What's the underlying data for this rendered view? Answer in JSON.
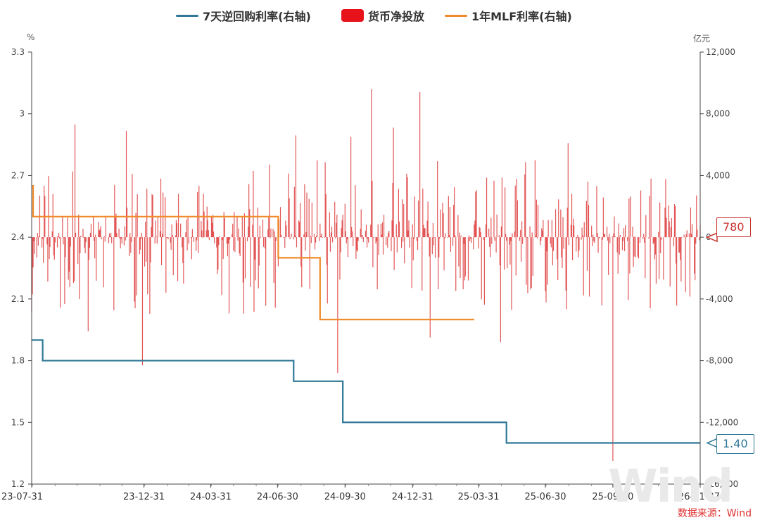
{
  "legend": {
    "rr_label": "7天逆回购利率(右轴)",
    "net_label": "货币净投放",
    "mlf_label": "1年MLF利率(右轴)"
  },
  "units": {
    "left": "%",
    "right": "亿元"
  },
  "callouts": {
    "net_latest": "780",
    "rr_latest": "1.40"
  },
  "source": "数据来源：Wind",
  "watermark": "Wind",
  "colors": {
    "rr": "#2f7896",
    "net": "#e8121b",
    "net_bar": "#de3a3a",
    "mlf": "#f08c2b",
    "axis": "#444"
  },
  "chart_data": {
    "type": "line+bar",
    "date_range": [
      "2023-07-31",
      "2026-01-27"
    ],
    "x_ticks": [
      "23-07-31",
      "23-12-31",
      "24-03-31",
      "24-06-30",
      "24-09-30",
      "24-12-31",
      "25-03-31",
      "25-06-30",
      "25-09-30",
      "26-01-27"
    ],
    "left_axis": {
      "unit": "%",
      "min": 1.2,
      "max": 3.3,
      "ticks": [
        "1.2",
        "1.5",
        "1.8",
        "2.1",
        "2.4",
        "2.7",
        "3",
        "3.3"
      ]
    },
    "right_axis": {
      "unit": "亿元",
      "min": -16000,
      "max": 12000,
      "ticks": [
        "-16,000",
        "-12,000",
        "-8,000",
        "-4,000",
        "0",
        "4,000",
        "8,000",
        "12,000"
      ]
    },
    "series": [
      {
        "name": "7天逆回购利率(右轴)",
        "kind": "step-line",
        "points": [
          [
            "2023-07-31",
            1.9
          ],
          [
            "2023-08-15",
            1.8
          ],
          [
            "2024-07-22",
            1.7
          ],
          [
            "2024-09-27",
            1.5
          ],
          [
            "2025-05-08",
            1.4
          ],
          [
            "2026-01-27",
            1.4
          ]
        ]
      },
      {
        "name": "1年MLF利率(右轴)",
        "kind": "step-line",
        "points": [
          [
            "2023-07-31",
            2.65
          ],
          [
            "2023-08-02",
            2.5
          ],
          [
            "2024-06-30",
            2.5
          ],
          [
            "2024-07-01",
            2.3
          ],
          [
            "2024-08-26",
            2.3
          ],
          [
            "2024-08-27",
            2.0
          ],
          [
            "2025-03-25",
            2.0
          ]
        ]
      },
      {
        "name": "货币净投放",
        "kind": "daily-bars",
        "spikes": [
          [
            "2023-09-28",
            7300
          ],
          [
            "2023-09-30",
            5000
          ],
          [
            "2023-10-16",
            -6100
          ],
          [
            "2023-12-07",
            6900
          ],
          [
            "2023-12-29",
            -8300
          ],
          [
            "2024-01-23",
            3800
          ],
          [
            "2024-04-10",
            -2100
          ],
          [
            "2024-07-25",
            6600
          ],
          [
            "2024-09-06",
            -4300
          ],
          [
            "2024-09-20",
            -8800
          ],
          [
            "2024-10-08",
            6500
          ],
          [
            "2024-11-05",
            9600
          ],
          [
            "2024-12-05",
            7100
          ],
          [
            "2025-01-10",
            9400
          ],
          [
            "2025-01-24",
            -6500
          ],
          [
            "2025-04-30",
            -6800
          ],
          [
            "2025-07-31",
            6100
          ],
          [
            "2025-09-30",
            -14500
          ],
          [
            "2026-01-10",
            4800
          ],
          [
            "2026-01-18",
            -4700
          ]
        ]
      }
    ]
  }
}
